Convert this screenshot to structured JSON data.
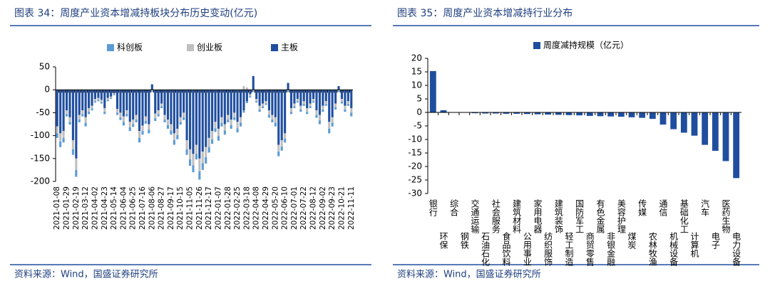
{
  "chart_data": [
    {
      "type": "bar",
      "stacked": true,
      "title": "图表 34：周度产业资本增减持板块分布历史变动(亿元)",
      "source": "资料来源：Wind，国盛证券研究所",
      "categories": [
        "2021-01-08",
        null,
        null,
        "2021-01-29",
        null,
        null,
        "2021-02-19",
        null,
        null,
        "2021-03-12",
        null,
        null,
        "2021-04-02",
        null,
        null,
        "2021-04-23",
        null,
        null,
        "2021-05-14",
        null,
        null,
        "2021-06-04",
        null,
        null,
        "2021-06-25",
        null,
        null,
        "2021-07-16",
        null,
        null,
        "2021-08-06",
        null,
        null,
        "2021-08-27",
        null,
        null,
        "2021-09-17",
        null,
        null,
        "2021-10-15",
        null,
        null,
        "2021-11-05",
        null,
        null,
        "2021-11-26",
        null,
        null,
        "2021-12-17",
        null,
        null,
        "2022-01-07",
        null,
        null,
        "2022-01-28",
        null,
        null,
        "2022-02-25",
        null,
        null,
        "2022-03-18",
        null,
        null,
        "2022-04-08",
        null,
        null,
        "2022-04-29",
        null,
        null,
        "2022-05-20",
        null,
        null,
        "2022-06-10",
        null,
        null,
        "2022-07-01",
        null,
        null,
        "2022-07-22",
        null,
        null,
        "2022-08-12",
        null,
        null,
        "2022-09-02",
        null,
        null,
        "2022-09-23",
        null,
        null,
        "2022-10-21",
        null,
        null,
        "2022-11-11"
      ],
      "series": [
        {
          "name": "科创板",
          "color": "#5b9bd5",
          "values": [
            -10,
            -12,
            -10,
            -5,
            -6,
            -12,
            -15,
            -6,
            -5,
            -8,
            -5,
            -4,
            -3,
            -3,
            -3,
            -5,
            -3,
            -2,
            -2,
            -5,
            -6,
            -8,
            -5,
            -8,
            -6,
            -6,
            -10,
            -8,
            -6,
            -8,
            -2,
            -6,
            -5,
            -4,
            -6,
            -8,
            -9,
            -10,
            -9,
            -6,
            -6,
            -12,
            -14,
            -15,
            -12,
            -18,
            -15,
            -14,
            -12,
            -10,
            -8,
            -10,
            -8,
            -9,
            -6,
            -8,
            -6,
            -9,
            -8,
            -5,
            -4,
            -3,
            -2,
            -3,
            -5,
            -4,
            -3,
            -6,
            -6,
            -8,
            -10,
            -9,
            -8,
            -2,
            -5,
            -4,
            -3,
            -5,
            -4,
            -5,
            -4,
            -3,
            -6,
            -8,
            -5,
            -4,
            -10,
            -8,
            -5,
            -2,
            -4,
            -5,
            -4,
            -8
          ]
        },
        {
          "name": "创业板",
          "color": "#bfbfbf",
          "values": [
            -15,
            -18,
            -15,
            -8,
            -10,
            -20,
            -25,
            -10,
            -8,
            -12,
            -8,
            -6,
            -5,
            -4,
            -5,
            -8,
            -4,
            -3,
            -2,
            -8,
            -10,
            -12,
            -8,
            -12,
            -10,
            -10,
            -15,
            -12,
            -10,
            -12,
            -3,
            -10,
            -8,
            -6,
            -10,
            -12,
            -14,
            -15,
            -14,
            -10,
            -10,
            -20,
            -22,
            -25,
            -20,
            -28,
            -25,
            -22,
            -20,
            -18,
            -14,
            -16,
            -12,
            -14,
            -10,
            -12,
            -10,
            -14,
            -12,
            8,
            5,
            -4,
            -3,
            -5,
            -8,
            -6,
            -5,
            -10,
            -10,
            -12,
            -15,
            -14,
            -12,
            -3,
            -8,
            -6,
            -5,
            -8,
            -6,
            -8,
            -6,
            -5,
            -10,
            -12,
            -8,
            -6,
            -15,
            -12,
            -8,
            -3,
            -6,
            -8,
            -6,
            -10
          ]
        },
        {
          "name": "主板",
          "color": "#1f4e9f",
          "values": [
            -80,
            -95,
            -90,
            -45,
            -60,
            -110,
            -150,
            -55,
            -45,
            -60,
            -40,
            -35,
            -20,
            -18,
            -22,
            -40,
            -18,
            -15,
            -8,
            -42,
            -50,
            -58,
            -45,
            -70,
            -65,
            -55,
            -90,
            -78,
            -58,
            -75,
            12,
            -52,
            -45,
            -30,
            -55,
            -65,
            -75,
            -95,
            -85,
            -60,
            -50,
            -110,
            -130,
            -140,
            -120,
            -150,
            -135,
            -125,
            -105,
            -90,
            -70,
            -85,
            -60,
            -75,
            -55,
            -65,
            -50,
            -70,
            -60,
            -45,
            -25,
            -10,
            30,
            -20,
            -35,
            -30,
            -25,
            -45,
            -55,
            -60,
            -120,
            -110,
            -95,
            15,
            -40,
            -30,
            -20,
            -35,
            -25,
            -40,
            -30,
            -20,
            -45,
            -55,
            -35,
            -25,
            -70,
            -60,
            -30,
            8,
            -20,
            -35,
            -25,
            -40
          ]
        }
      ],
      "ylim": [
        -200,
        50
      ],
      "yticks": [
        -200,
        -150,
        -100,
        -50,
        0,
        50
      ],
      "legend": "top"
    },
    {
      "type": "bar",
      "title": "图表 35：周度产业资本增减持行业分布",
      "source": "资料来源：Wind，国盛证券研究所",
      "categories": [
        "银行",
        "环保",
        "综合",
        "钢铁",
        "交通运输",
        "石油石化",
        "社会服务",
        "食品饮料",
        "建筑材料",
        "公用事业",
        "家用电器",
        "纺织服饰",
        "建筑装饰",
        "轻工制造",
        "国防军工",
        "商贸零售",
        "有色金属",
        "非银金融",
        "美容护理",
        "煤炭",
        "传媒",
        "农林牧渔",
        "通信",
        "机械设备",
        "基础化工",
        "计算机",
        "汽车",
        "电子",
        "医药生物",
        "电力设备"
      ],
      "series": [
        {
          "name": "周度减持规模（亿元）",
          "color": "#1f4e9f",
          "values": [
            15.3,
            0.8,
            0,
            0,
            -0.3,
            -0.4,
            -0.4,
            -0.5,
            -0.5,
            -0.6,
            -0.7,
            -0.8,
            -0.9,
            -1.0,
            -1.1,
            -1.3,
            -1.4,
            -1.5,
            -1.6,
            -1.8,
            -2.0,
            -2.4,
            -4.5,
            -6.2,
            -7.5,
            -8.6,
            -12,
            -14.2,
            -18,
            -24.3
          ]
        }
      ],
      "ylim": [
        -30,
        20
      ],
      "yticks": [
        -30,
        -25,
        -20,
        -15,
        -10,
        -5,
        0,
        5,
        10,
        15,
        20
      ],
      "legend": "top"
    }
  ]
}
